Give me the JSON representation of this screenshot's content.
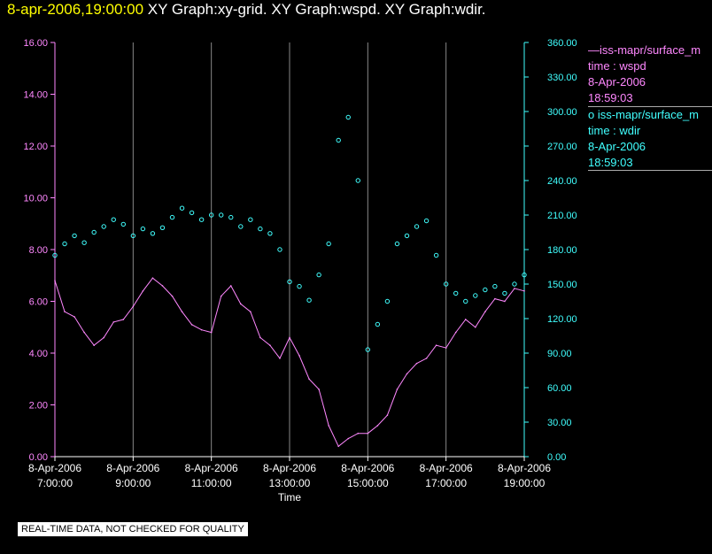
{
  "header": {
    "timestamp": "8-apr-2006,19:00:00",
    "graph_titles": "XY Graph:xy-grid.  XY Graph:wspd.  XY Graph:wdir."
  },
  "legend": [
    {
      "symbol": "—",
      "label": "iss-mapr/surface_m",
      "line2": "time : wspd",
      "line3": "8-Apr-2006",
      "line4": "18:59:03",
      "color": "#ff88ff"
    },
    {
      "symbol": "o",
      "label": "iss-mapr/surface_m",
      "line2": "time : wdir",
      "line3": "8-Apr-2006",
      "line4": "18:59:03",
      "color": "#40ffff"
    }
  ],
  "footer_note": "REAL-TIME DATA, NOT CHECKED FOR QUALITY",
  "chart_data": {
    "type": "line",
    "xlabel": "Time",
    "x_ticks": [
      {
        "date": "8-Apr-2006",
        "time": "7:00:00",
        "t": 7
      },
      {
        "date": "8-Apr-2006",
        "time": "9:00:00",
        "t": 9
      },
      {
        "date": "8-Apr-2006",
        "time": "11:00:00",
        "t": 11
      },
      {
        "date": "8-Apr-2006",
        "time": "13:00:00",
        "t": 13
      },
      {
        "date": "8-Apr-2006",
        "time": "15:00:00",
        "t": 15
      },
      {
        "date": "8-Apr-2006",
        "time": "17:00:00",
        "t": 17
      },
      {
        "date": "8-Apr-2006",
        "time": "19:00:00",
        "t": 19
      }
    ],
    "x_range": [
      7,
      19
    ],
    "y_left": {
      "range": [
        0,
        16
      ],
      "ticks": [
        "0.00",
        "2.00",
        "4.00",
        "6.00",
        "8.00",
        "10.00",
        "12.00",
        "14.00",
        "16.00"
      ],
      "color": "#ff88ff"
    },
    "y_right": {
      "range": [
        0,
        360
      ],
      "ticks": [
        "0.00",
        "30.00",
        "60.00",
        "90.00",
        "120.00",
        "150.00",
        "180.00",
        "210.00",
        "240.00",
        "270.00",
        "300.00",
        "330.00",
        "360.00"
      ],
      "color": "#40ffff"
    },
    "grid": "vertical",
    "series": [
      {
        "axis": "left",
        "style": "line",
        "color": "#ff88ff",
        "x": [
          7.0,
          7.25,
          7.5,
          7.75,
          8.0,
          8.25,
          8.5,
          8.75,
          9.0,
          9.25,
          9.5,
          9.75,
          10.0,
          10.25,
          10.5,
          10.75,
          11.0,
          11.25,
          11.5,
          11.75,
          12.0,
          12.25,
          12.5,
          12.75,
          13.0,
          13.25,
          13.5,
          13.75,
          14.0,
          14.25,
          14.5,
          14.75,
          15.0,
          15.25,
          15.5,
          15.75,
          16.0,
          16.25,
          16.5,
          16.75,
          17.0,
          17.25,
          17.5,
          17.75,
          18.0,
          18.25,
          18.5,
          18.75,
          19.0
        ],
        "y": [
          6.8,
          5.6,
          5.4,
          4.8,
          4.3,
          4.6,
          5.2,
          5.3,
          5.8,
          6.4,
          6.9,
          6.6,
          6.2,
          5.6,
          5.1,
          4.9,
          4.8,
          6.2,
          6.6,
          5.9,
          5.6,
          4.6,
          4.3,
          3.8,
          4.6,
          3.9,
          3.0,
          2.6,
          1.2,
          0.4,
          0.7,
          0.9,
          0.9,
          1.2,
          1.6,
          2.6,
          3.2,
          3.6,
          3.8,
          4.3,
          4.2,
          4.8,
          5.3,
          5.0,
          5.6,
          6.1,
          6.0,
          6.5,
          6.4
        ]
      },
      {
        "axis": "right",
        "style": "scatter",
        "color": "#40ffff",
        "x": [
          7.0,
          7.25,
          7.5,
          7.75,
          8.0,
          8.25,
          8.5,
          8.75,
          9.0,
          9.25,
          9.5,
          9.75,
          10.0,
          10.25,
          10.5,
          10.75,
          11.0,
          11.25,
          11.5,
          11.75,
          12.0,
          12.25,
          12.5,
          12.75,
          13.0,
          13.25,
          13.5,
          13.75,
          14.0,
          14.25,
          14.5,
          14.75,
          15.0,
          15.25,
          15.5,
          15.75,
          16.0,
          16.25,
          16.5,
          16.75,
          17.0,
          17.25,
          17.5,
          17.75,
          18.0,
          18.25,
          18.5,
          18.75,
          19.0
        ],
        "y": [
          175,
          185,
          192,
          186,
          195,
          200,
          206,
          202,
          192,
          198,
          194,
          199,
          208,
          216,
          212,
          206,
          210,
          210,
          208,
          200,
          206,
          198,
          194,
          180,
          152,
          148,
          136,
          158,
          185,
          275,
          295,
          240,
          93,
          115,
          135,
          185,
          192,
          200,
          205,
          175,
          150,
          142,
          135,
          140,
          145,
          148,
          142,
          150,
          158
        ]
      }
    ]
  }
}
